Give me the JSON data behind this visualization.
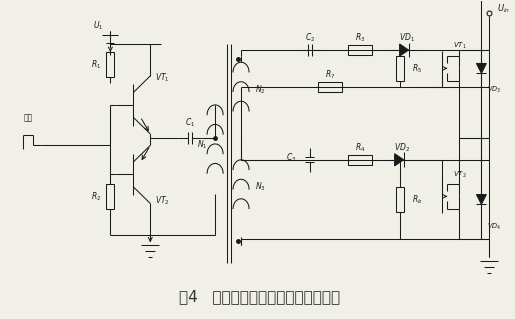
{
  "title": "图4   新型的不对称半桥隔离驱动电路",
  "title_fontsize": 11,
  "bg_color": "#f0efe8",
  "line_color": "#1a1a1a",
  "fig_width": 5.15,
  "fig_height": 3.19,
  "dpi": 100
}
